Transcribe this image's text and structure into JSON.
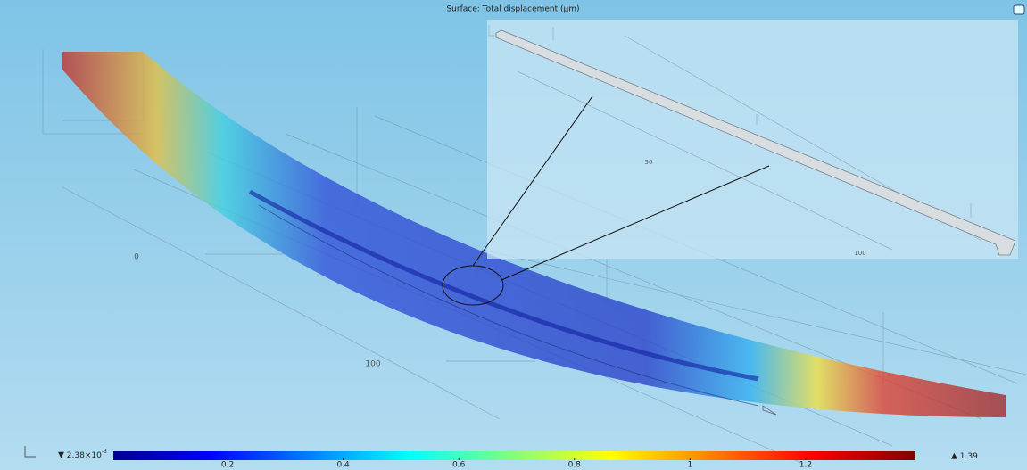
{
  "plot": {
    "title": "Surface: Total displacement (μm)",
    "axis_labels": [
      "0",
      "100"
    ],
    "inset": {
      "axis_labels": [
        "50",
        "100"
      ]
    },
    "colorbar": {
      "min": {
        "value": 0.00238,
        "label": "2.38×10",
        "exponent": "-3"
      },
      "max": {
        "value": 1.39,
        "label": "1.39"
      },
      "ticks": [
        0.2,
        0.4,
        0.6,
        0.8,
        1,
        1.2
      ]
    }
  }
}
